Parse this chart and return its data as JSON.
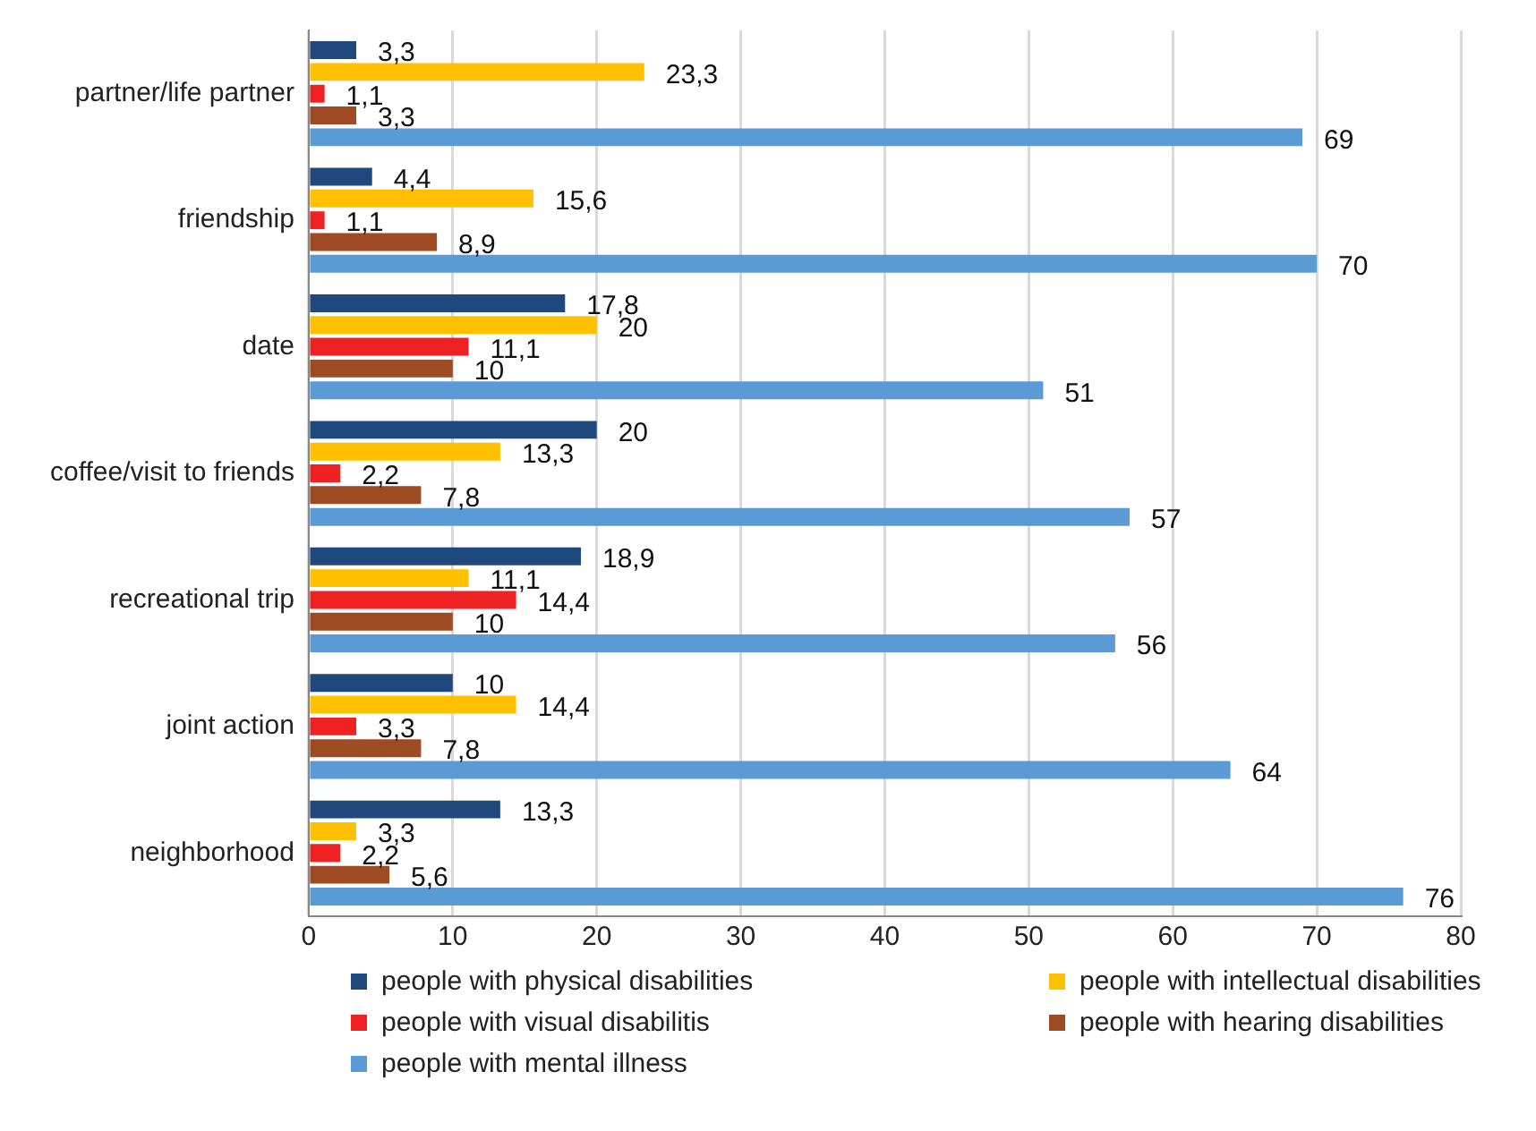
{
  "chart_data": {
    "type": "bar",
    "orientation": "horizontal",
    "categories": [
      "partner/life partner",
      "friendship",
      "date",
      "coffee/visit to friends",
      "recreational trip",
      "joint action",
      "neighborhood"
    ],
    "series": [
      {
        "name": "people with physical disabilities",
        "color": "#1f497d",
        "values": [
          3.3,
          4.4,
          17.8,
          20,
          18.9,
          10,
          13.3
        ],
        "value_labels": [
          "3,3",
          "4,4",
          "17,8",
          "20",
          "18,9",
          "10",
          "13,3"
        ]
      },
      {
        "name": "people with intellectual disabilities",
        "color": "#ffc000",
        "values": [
          23.3,
          15.6,
          20,
          13.3,
          11.1,
          14.4,
          3.3
        ],
        "value_labels": [
          "23,3",
          "15,6",
          "20",
          "13,3",
          "11,1",
          "14,4",
          "3,3"
        ]
      },
      {
        "name": "people with visual disabilitis",
        "color": "#ee2222",
        "values": [
          1.1,
          1.1,
          11.1,
          2.2,
          14.4,
          3.3,
          2.2
        ],
        "value_labels": [
          "1,1",
          "1,1",
          "11,1",
          "2,2",
          "14,4",
          "3,3",
          "2,2"
        ]
      },
      {
        "name": "people with hearing disabilities",
        "color": "#9e4a22",
        "values": [
          3.3,
          8.9,
          10,
          7.8,
          10,
          7.8,
          5.6
        ],
        "value_labels": [
          "3,3",
          "8,9",
          "10",
          "7,8",
          "10",
          "7,8",
          "5,6"
        ]
      },
      {
        "name": "people with mental illness",
        "color": "#5b9bd5",
        "values": [
          69,
          70,
          51,
          57,
          56,
          64,
          76
        ],
        "value_labels": [
          "69",
          "70",
          "51",
          "57",
          "56",
          "64",
          "76"
        ]
      }
    ],
    "xlim": [
      0,
      80
    ],
    "xticks": [
      0,
      10,
      20,
      30,
      40,
      50,
      60,
      70,
      80
    ],
    "grid": "x",
    "legend": "bottom"
  }
}
